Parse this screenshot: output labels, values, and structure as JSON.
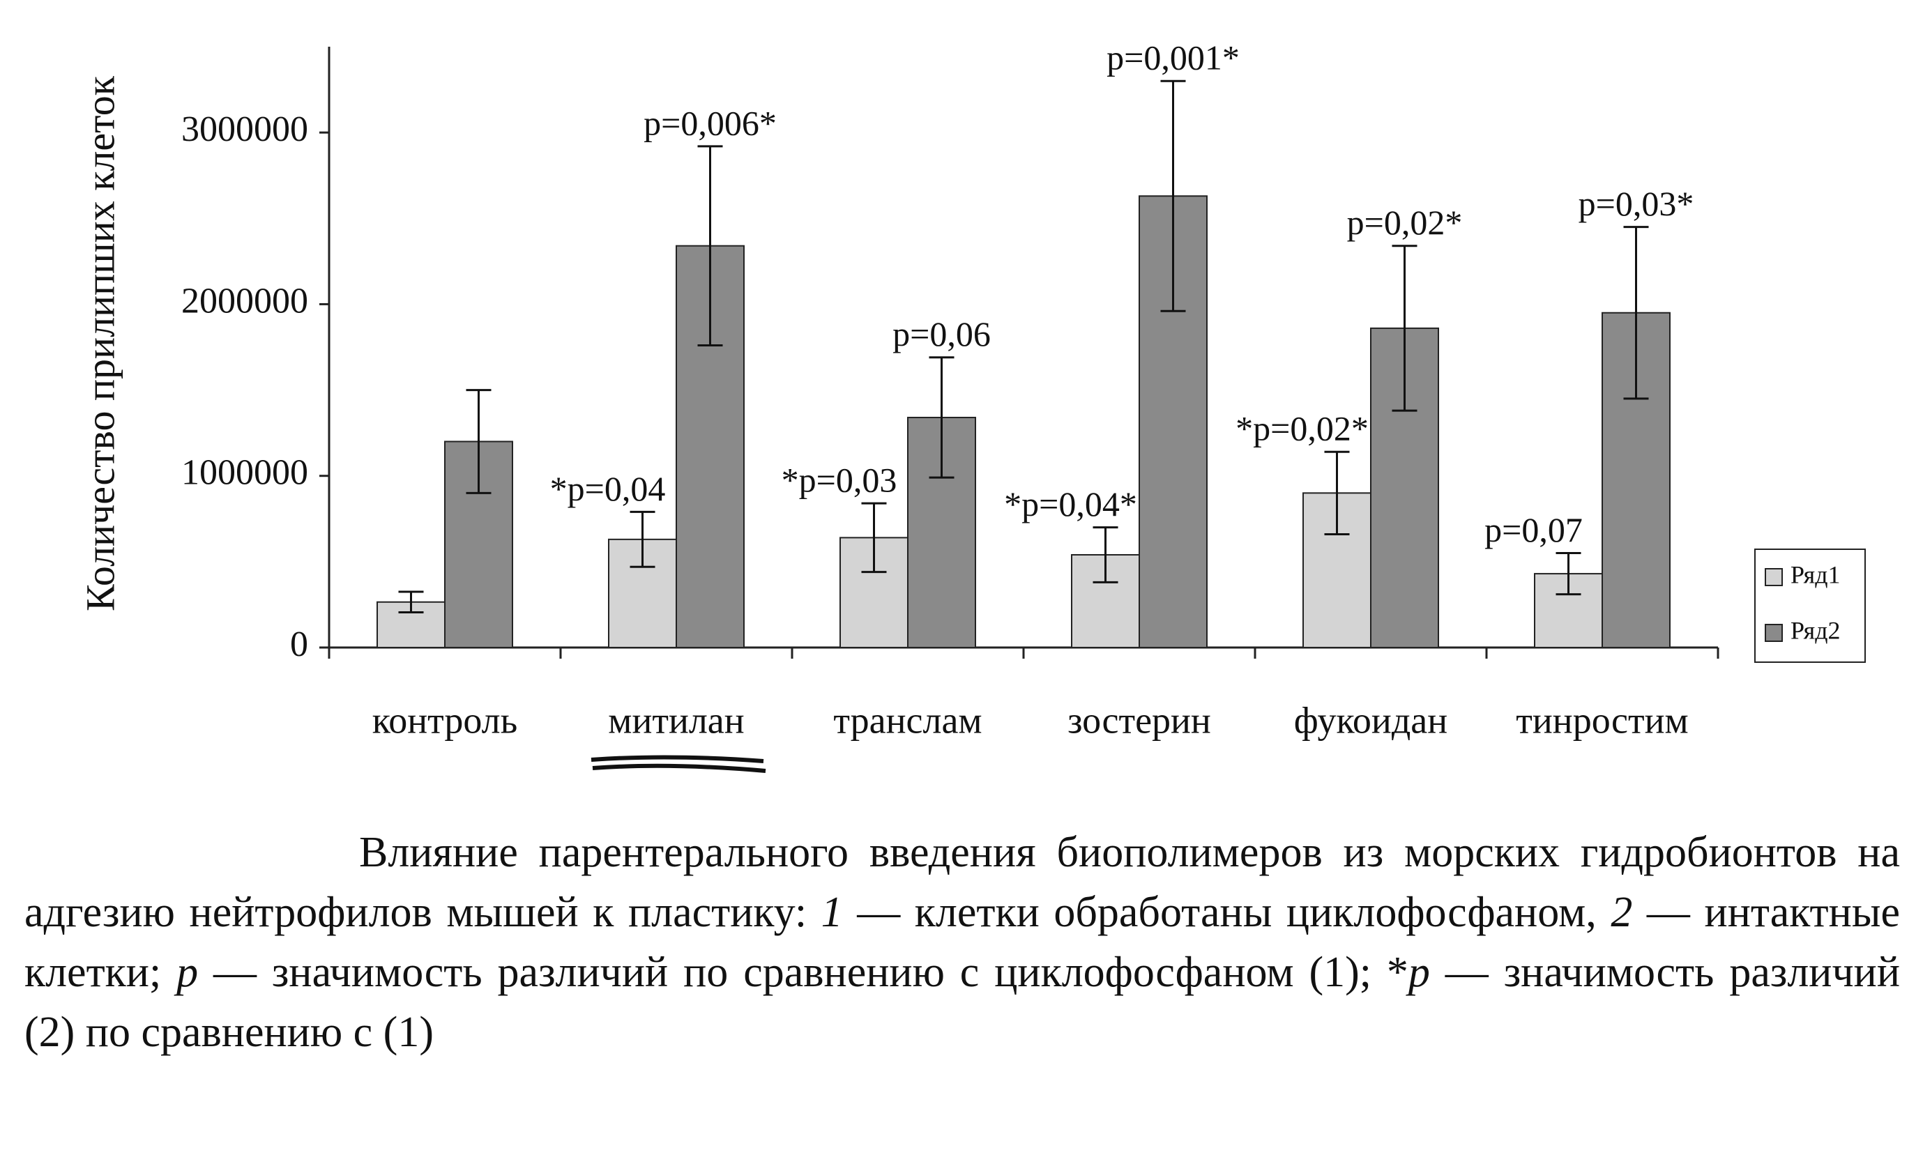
{
  "chart_data": {
    "type": "bar",
    "y_label": "Количество прилипших клеток",
    "categories": [
      "контроль",
      "митилан",
      "транслам",
      "зостерин",
      "фукоидан",
      "тинростим"
    ],
    "series": [
      {
        "name": "Ряд1",
        "color": "#d4d4d4",
        "values": [
          265000,
          630000,
          640000,
          540000,
          900000,
          430000
        ],
        "errors": [
          60000,
          160000,
          200000,
          160000,
          240000,
          120000
        ],
        "labels": [
          null,
          "*p=0,04",
          "*p=0,03",
          "*p=0,04*",
          "*p=0,02*",
          "p=0,07"
        ]
      },
      {
        "name": "Ряд2",
        "color": "#8a8a8a",
        "values": [
          1200000,
          2340000,
          1340000,
          2630000,
          1860000,
          1950000
        ],
        "errors": [
          300000,
          580000,
          350000,
          670000,
          480000,
          500000
        ],
        "labels": [
          null,
          "p=0,006*",
          "p=0,06",
          "p=0,001*",
          "p=0,02*",
          "p=0,03*"
        ]
      }
    ],
    "ylim": [
      0,
      3500000
    ],
    "yticks": [
      0,
      1000000,
      2000000,
      3000000
    ]
  },
  "caption": [
    "Влияние парентерального введения биополимеров из морских гидробионтов на адгезию нейтрофилов мышей к пластику: ",
    "1",
    " — клетки обработаны циклофосфаном, ",
    "2",
    " — интактные клетки; ",
    "p",
    " — значимость различий по сравнению с циклофосфаном (1); *",
    "p",
    " — значимость различий (2) по сравнению с (1)"
  ]
}
